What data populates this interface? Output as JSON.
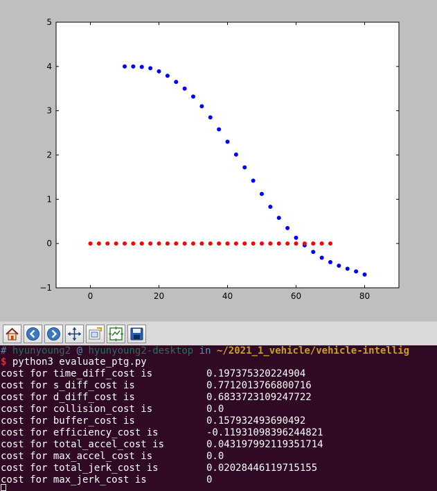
{
  "chart_data": {
    "type": "scatter",
    "title": "",
    "xlabel": "",
    "ylabel": "",
    "xlim": [
      -10,
      90
    ],
    "ylim": [
      -1,
      5
    ],
    "x_ticks": [
      0,
      20,
      40,
      60,
      80
    ],
    "x_tick_labels": [
      "0",
      "20",
      "40",
      "60",
      "80"
    ],
    "y_ticks": [
      -1,
      0,
      1,
      2,
      3,
      4,
      5
    ],
    "y_tick_labels": [
      "−1",
      "0",
      "1",
      "2",
      "3",
      "4",
      "5"
    ],
    "grid": false,
    "series": [
      {
        "color": "#0000ff",
        "x": [
          10,
          12.5,
          15,
          17.5,
          20,
          22.5,
          25,
          27.5,
          30,
          32.5,
          35,
          37.5,
          40,
          42.5,
          45,
          47.5,
          50,
          52.5,
          55,
          57.5,
          60,
          62.5,
          65,
          67.5,
          70,
          72.5,
          75,
          77.5,
          80
        ],
        "y": [
          4.0,
          4.0,
          3.99,
          3.96,
          3.89,
          3.79,
          3.65,
          3.5,
          3.32,
          3.1,
          2.85,
          2.58,
          2.3,
          2.01,
          1.72,
          1.42,
          1.12,
          0.83,
          0.58,
          0.35,
          0.13,
          -0.04,
          -0.19,
          -0.32,
          -0.42,
          -0.5,
          -0.57,
          -0.63,
          -0.7
        ]
      },
      {
        "color": "#ff0000",
        "x": [
          0,
          2.5,
          5,
          7.5,
          10,
          12.5,
          15,
          17.5,
          20,
          22.5,
          25,
          27.5,
          30,
          32.5,
          35,
          37.5,
          40,
          42.5,
          45,
          47.5,
          50,
          52.5,
          55,
          57.5,
          60,
          62.5,
          65,
          67.5,
          70
        ],
        "y": [
          0,
          0,
          0,
          0,
          0,
          0,
          0,
          0,
          0,
          0,
          0,
          0,
          0,
          0,
          0,
          0,
          0,
          0,
          0,
          0,
          0,
          0,
          0,
          0,
          0,
          0,
          0,
          0,
          0
        ]
      }
    ]
  },
  "toolbar": {
    "buttons": [
      {
        "name": "home-button",
        "icon": "home-icon"
      },
      {
        "name": "back-button",
        "icon": "back-arrow-icon"
      },
      {
        "name": "forward-button",
        "icon": "forward-arrow-icon"
      },
      {
        "name": "pan-button",
        "icon": "move-icon"
      },
      {
        "name": "zoom-button",
        "icon": "zoom-rect-icon"
      },
      {
        "name": "subplots-button",
        "icon": "subplots-icon"
      },
      {
        "name": "save-button",
        "icon": "save-icon"
      }
    ]
  },
  "terminal": {
    "prompt": {
      "hash": "#",
      "user": "hyunyoung2",
      "at": "@",
      "host": "hyunyoung2-desktop",
      "in": "in",
      "path": "~/2021_1_vehicle/vehicle-intellig"
    },
    "command": {
      "symbol": "$",
      "text": "python3 evaluate_ptg.py"
    },
    "rows": [
      {
        "label": "cost for time_diff_cost is",
        "value": "0.197375320224904"
      },
      {
        "label": "cost for s_diff_cost is",
        "value": "0.7712013766800716"
      },
      {
        "label": "cost for d_diff_cost is",
        "value": "0.6833723109247722"
      },
      {
        "label": "cost for collision_cost is",
        "value": "0.0"
      },
      {
        "label": "cost for buffer_cost is",
        "value": "0.157932493690492"
      },
      {
        "label": "cost for efficiency_cost is",
        "value": "-0.11931098396244821"
      },
      {
        "label": "cost for total_accel_cost is",
        "value": "0.043197992119351714"
      },
      {
        "label": "cost for max_accel_cost is",
        "value": "0.0"
      },
      {
        "label": "cost for total_jerk_cost is",
        "value": "0.02028446119715155"
      },
      {
        "label": "cost for max_jerk_cost is",
        "value": "0"
      }
    ]
  }
}
